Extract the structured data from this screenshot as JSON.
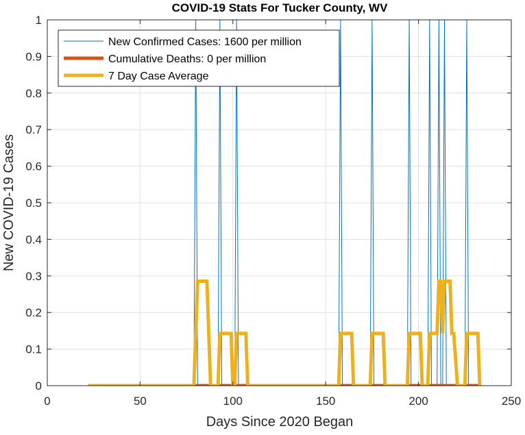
{
  "chart_data": {
    "type": "line",
    "title": "COVID-19 Stats For Tucker County, WV",
    "xlabel": "Days Since 2020 Began",
    "ylabel": "New COVID-19 Cases",
    "xlim": [
      0,
      250
    ],
    "ylim": [
      0,
      1
    ],
    "xticks": [
      0,
      50,
      100,
      150,
      200,
      250
    ],
    "xtick_labels": [
      "0",
      "50",
      "100",
      "150",
      "200",
      "250"
    ],
    "yticks": [
      0,
      0.1,
      0.2,
      0.3,
      0.4,
      0.5,
      0.6,
      0.7,
      0.8,
      0.9,
      1
    ],
    "ytick_labels": [
      "0",
      "0.1",
      "0.2",
      "0.3",
      "0.4",
      "0.5",
      "0.6",
      "0.7",
      "0.8",
      "0.9",
      "1"
    ],
    "grid": true,
    "legend_position": "top-left",
    "series": [
      {
        "name": "New Confirmed Cases: 1600 per million",
        "color": "#0072BD",
        "width": 1,
        "x": [
          22,
          79,
          80,
          81,
          92,
          93,
          94,
          101,
          102,
          103,
          157,
          158,
          159,
          174,
          175,
          176,
          194,
          195,
          196,
          205,
          206,
          207,
          210,
          211,
          212,
          213,
          214,
          215,
          225,
          226,
          227,
          233
        ],
        "y": [
          0,
          0,
          1,
          0,
          0,
          1,
          0,
          0,
          1,
          0,
          0,
          1,
          0,
          0,
          1,
          0,
          0,
          1,
          0,
          0,
          1,
          0,
          0,
          1,
          0,
          0,
          1,
          0,
          0,
          1,
          0,
          0
        ]
      },
      {
        "name": "Cumulative Deaths: 0 per million",
        "color": "#D95319",
        "width": 5,
        "x": [
          22,
          233
        ],
        "y": [
          0,
          0
        ]
      },
      {
        "name": "7 Day Case Average",
        "color": "#EDB120",
        "width": 5,
        "x": [
          22,
          79,
          80,
          81,
          86,
          87,
          88,
          92,
          93,
          94,
          99,
          100,
          101,
          102,
          103,
          106,
          107,
          108,
          157,
          158,
          159,
          164,
          165,
          166,
          174,
          175,
          176,
          181,
          182,
          183,
          194,
          195,
          196,
          201,
          202,
          203,
          205,
          206,
          207,
          210,
          211,
          212,
          213,
          214,
          215,
          217,
          218,
          219,
          221,
          222,
          225,
          226,
          227,
          232,
          233
        ],
        "y": [
          0,
          0,
          0.1429,
          0.2857,
          0.2857,
          0.1429,
          0,
          0,
          0.1429,
          0.1429,
          0.1429,
          0,
          0,
          0.1429,
          0.1429,
          0.1429,
          0.1429,
          0,
          0,
          0.1429,
          0.1429,
          0.1429,
          0,
          0,
          0,
          0.1429,
          0.1429,
          0.1429,
          0,
          0,
          0,
          0.1429,
          0.1429,
          0.1429,
          0,
          0,
          0,
          0.1429,
          0.1429,
          0.1429,
          0.2857,
          0.2857,
          0.1429,
          0.2857,
          0.2857,
          0.2857,
          0.1429,
          0.1429,
          0,
          0,
          0,
          0.1429,
          0.1429,
          0.1429,
          0
        ]
      }
    ]
  }
}
